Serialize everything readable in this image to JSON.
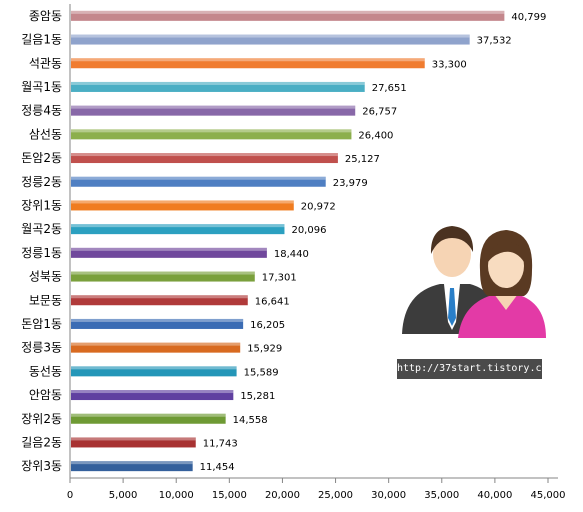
{
  "chart_data": {
    "type": "bar",
    "orientation": "horizontal",
    "categories": [
      "종암동",
      "길음1동",
      "석관동",
      "월곡1동",
      "정릉4동",
      "삼선동",
      "돈암2동",
      "정릉2동",
      "장위1동",
      "월곡2동",
      "정릉1동",
      "성북동",
      "보문동",
      "돈암1동",
      "정릉3동",
      "동선동",
      "안암동",
      "장위2동",
      "길음2동",
      "장위3동"
    ],
    "values": [
      40799,
      37532,
      33300,
      27651,
      26757,
      26400,
      25127,
      23979,
      20972,
      20096,
      18440,
      17301,
      16641,
      16205,
      15929,
      15589,
      15281,
      14558,
      11743,
      11454
    ],
    "value_labels": [
      "40,799",
      "37,532",
      "33,300",
      "27,651",
      "26,757",
      "26,400",
      "25,127",
      "23,979",
      "20,972",
      "20,096",
      "18,440",
      "17,301",
      "16,641",
      "16,205",
      "15,929",
      "15,589",
      "15,281",
      "14,558",
      "11,743",
      "11,454"
    ],
    "bar_colors": [
      "#c4878c",
      "#8fa3cc",
      "#f07c30",
      "#4aaec4",
      "#8868a8",
      "#8caf4c",
      "#c0504d",
      "#4f7fc2",
      "#f07c20",
      "#2ba0c0",
      "#70489c",
      "#7aa03c",
      "#b03a3a",
      "#3b6cb4",
      "#d86a20",
      "#2496b8",
      "#6040a0",
      "#6e9a34",
      "#a83232",
      "#34609c"
    ],
    "xlim": [
      0,
      45000
    ],
    "x_ticks": [
      0,
      5000,
      10000,
      15000,
      20000,
      25000,
      30000,
      35000,
      40000,
      45000
    ],
    "x_tick_labels": [
      "0",
      "5,000",
      "10,000",
      "15,000",
      "20,000",
      "25,000",
      "30,000",
      "35,000",
      "40,000",
      "45,000"
    ],
    "grid": false,
    "title": "",
    "xlabel": "",
    "ylabel": ""
  },
  "watermark": {
    "url": "http://37start.tistory.com"
  },
  "illustration": {
    "icon": "people-couple-icon"
  }
}
